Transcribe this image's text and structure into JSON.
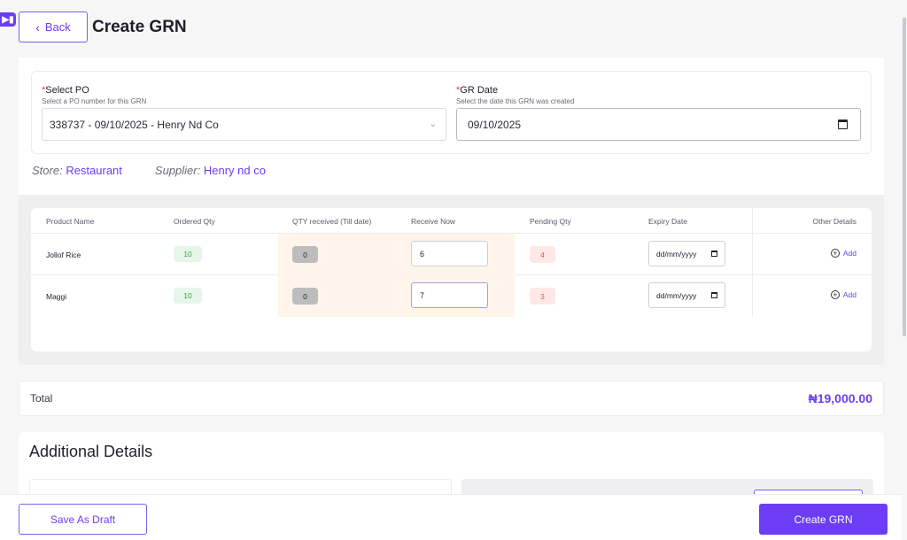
{
  "header": {
    "back_label": "Back",
    "title": "Create GRN"
  },
  "form": {
    "po": {
      "label": "Select PO",
      "required_mark": "*",
      "hint": "Select a PO number for this GRN",
      "value": "338737 - 09/10/2025 - Henry Nd Co"
    },
    "gr_date": {
      "label": "GR Date",
      "required_mark": "*",
      "hint": "Select the date this GRN was created",
      "value": "09/10/2025"
    }
  },
  "meta": {
    "store_label": "Store:",
    "store_value": "Restaurant",
    "supplier_label": "Supplier:",
    "supplier_value": "Henry nd co"
  },
  "table": {
    "columns": [
      "Product Name",
      "Ordered Qty",
      "QTY received (Till date)",
      "Receive Now",
      "Pending Qty",
      "Expiry Date",
      "Other Details"
    ],
    "rows": [
      {
        "product": "Jollof Rice",
        "ordered": "10",
        "received": "0",
        "receive_now": "6",
        "pending": "4",
        "expiry": "dd/mm/yyyy",
        "other": "Add"
      },
      {
        "product": "Maggi",
        "ordered": "10",
        "received": "0",
        "receive_now": "7",
        "pending": "3",
        "expiry": "dd/mm/yyyy",
        "other": "Add"
      }
    ]
  },
  "total": {
    "label": "Total",
    "value": "₦19,000.00"
  },
  "additional": {
    "title": "Additional Details"
  },
  "footer": {
    "draft_label": "Save As Draft",
    "create_label": "Create GRN"
  },
  "colors": {
    "accent": "#6d3df5",
    "green_badge": "#3c9d52",
    "red_badge": "#e0584b",
    "receive_bg": "#fff5ea"
  },
  "icons": [
    "sidebar-toggle-icon",
    "chevron-left-icon",
    "chevron-down-icon",
    "calendar-icon",
    "plus-circle-icon"
  ]
}
